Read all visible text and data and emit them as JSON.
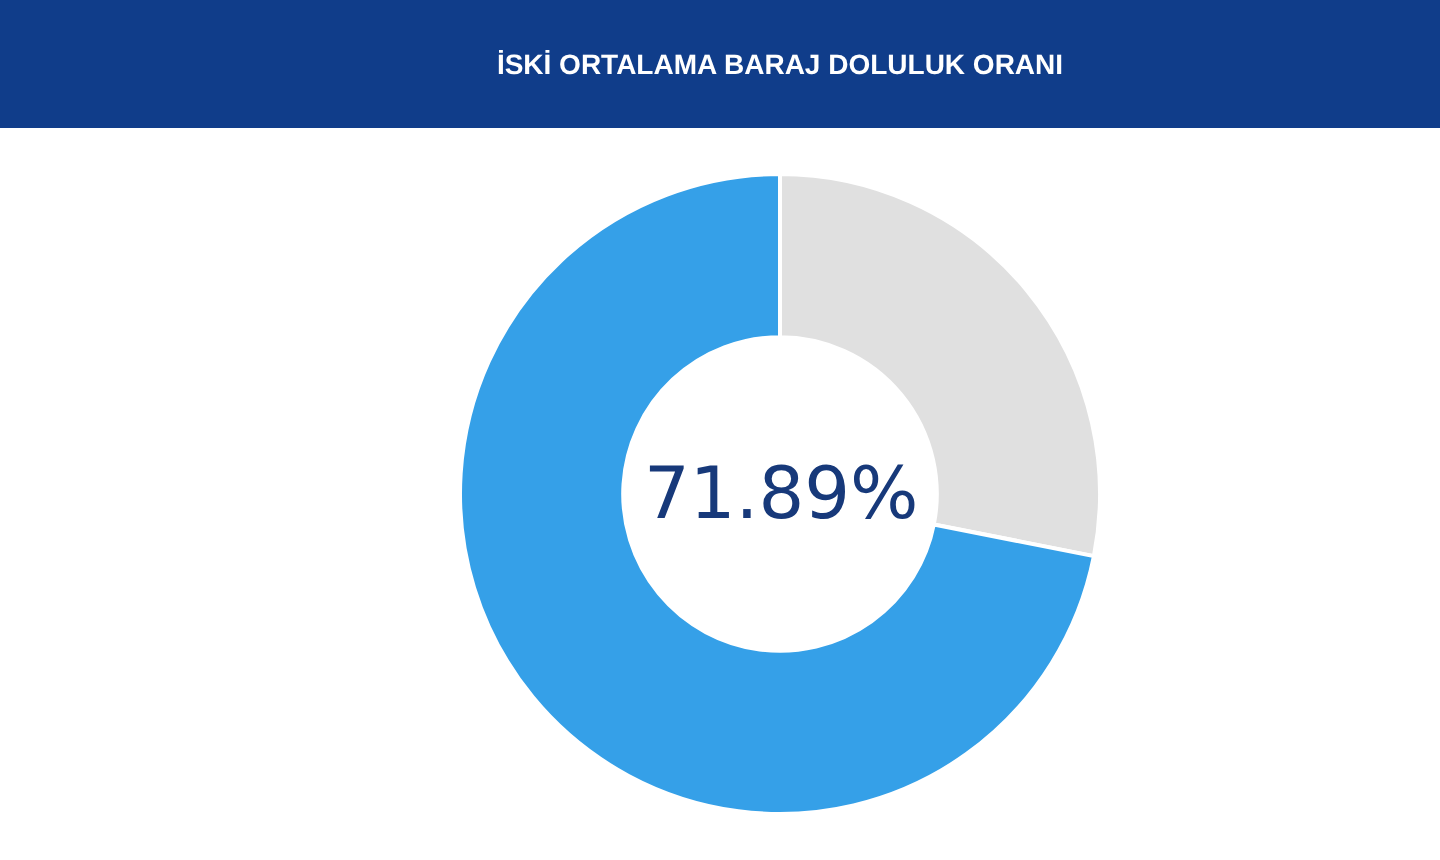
{
  "chart_data": {
    "type": "donut",
    "title": "İSKİ ORTALAMA BARAJ DOLULUK ORANI",
    "categories": [
      null,
      null
    ],
    "values": [
      28.11,
      71.89
    ],
    "colors": [
      "#e0e0e0",
      "#35a0e8"
    ],
    "annotations": [
      "71.89%"
    ],
    "legend": false
  }
}
